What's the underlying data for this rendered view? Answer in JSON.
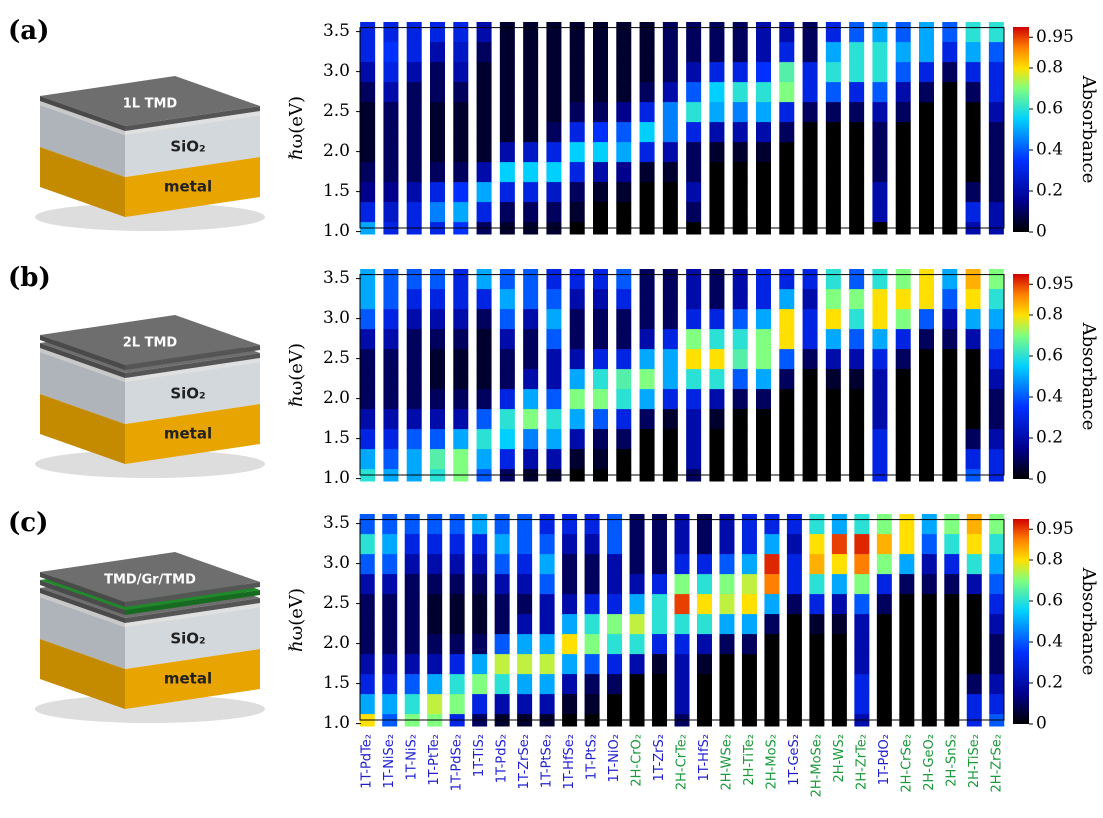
{
  "chart_data": [
    {
      "type": "heatmap",
      "label": "(a)",
      "illustration": [
        "1L TMD",
        "SiO₂",
        "metal"
      ],
      "ylabel": "ℏω(eV)",
      "colorbar_label": "Absorbance",
      "y": [
        1.0,
        1.25,
        1.5,
        1.75,
        2.0,
        2.25,
        2.5,
        2.75,
        3.0,
        3.25,
        3.5
      ],
      "ylim": [
        0.97,
        3.62
      ],
      "yticks": [
        {
          "value": 1,
          "label": "1.0"
        },
        1.5,
        {
          "value": 2,
          "label": "2.0"
        },
        2.5,
        {
          "value": 3,
          "label": "3.0"
        },
        3.5
      ],
      "clim": [
        0,
        1
      ],
      "cticks": [
        0,
        0.2,
        0.4,
        0.6,
        0.8,
        0.95
      ],
      "colormap": "jet",
      "values": [
        [
          0.5,
          0.3,
          0.15,
          0.1,
          0.05,
          0.05,
          0.05,
          0.1,
          0.2,
          0.3,
          0.3
        ],
        [
          0.3,
          0.25,
          0.15,
          0.1,
          0.1,
          0.1,
          0.1,
          0.2,
          0.3,
          0.35,
          0.3
        ],
        [
          0.3,
          0.3,
          0.2,
          0.1,
          0.1,
          0.1,
          0.1,
          0.1,
          0.2,
          0.3,
          0.3
        ],
        [
          0.3,
          0.45,
          0.3,
          0.1,
          0.05,
          0.05,
          0.05,
          0.1,
          0.1,
          0.2,
          0.3
        ],
        [
          0.35,
          0.5,
          0.35,
          0.1,
          0.05,
          0.05,
          0.05,
          0.1,
          0.2,
          0.25,
          0.3
        ],
        [
          0.1,
          0.3,
          0.5,
          0.2,
          0.05,
          0.05,
          0.05,
          0.05,
          0.05,
          0.1,
          0.2
        ],
        [
          0.05,
          0.1,
          0.3,
          0.55,
          0.2,
          0.05,
          0.05,
          0.05,
          0.05,
          0.05,
          0.05
        ],
        [
          0.05,
          0.1,
          0.3,
          0.55,
          0.25,
          0.05,
          0.05,
          0.05,
          0.05,
          0.05,
          0.05
        ],
        [
          0.05,
          0.1,
          0.25,
          0.55,
          0.3,
          0.1,
          0.05,
          0.05,
          0.05,
          0.05,
          0.05
        ],
        [
          0,
          0.05,
          0.1,
          0.3,
          0.55,
          0.3,
          0.1,
          0.05,
          0.05,
          0.05,
          0.05
        ],
        [
          0,
          0,
          0.05,
          0.2,
          0.55,
          0.35,
          0.1,
          0.05,
          0.05,
          0.05,
          0.05
        ],
        [
          0,
          0,
          0.05,
          0.15,
          0.5,
          0.4,
          0.15,
          0.05,
          0.05,
          0.05,
          0.05
        ],
        [
          0,
          0,
          0,
          0.05,
          0.3,
          0.55,
          0.3,
          0.1,
          0.05,
          0.05,
          0.05
        ],
        [
          0,
          0,
          0,
          0.05,
          0.2,
          0.45,
          0.45,
          0.2,
          0.1,
          0.1,
          0.1
        ],
        [
          0,
          0.1,
          0.2,
          0.1,
          0.1,
          0.3,
          0.6,
          0.4,
          0.2,
          0.1,
          0.1
        ],
        [
          0,
          0,
          0,
          0,
          0.05,
          0.2,
          0.5,
          0.55,
          0.3,
          0.1,
          0.1
        ],
        [
          0,
          0,
          0,
          0,
          0.05,
          0.2,
          0.45,
          0.6,
          0.3,
          0.1,
          0.1
        ],
        [
          0,
          0,
          0,
          0,
          0.05,
          0.2,
          0.5,
          0.6,
          0.35,
          0.2,
          0.2
        ],
        [
          0,
          0,
          0,
          0,
          0,
          0.1,
          0.3,
          0.7,
          0.65,
          0.3,
          0.2
        ],
        [
          0,
          0,
          0,
          0,
          0,
          0,
          0.1,
          0.3,
          0.3,
          0.1,
          0.1
        ],
        [
          0,
          0,
          0,
          0,
          0,
          0,
          0.1,
          0.4,
          0.6,
          0.5,
          0.3
        ],
        [
          0,
          0,
          0,
          0,
          0,
          0,
          0.1,
          0.3,
          0.6,
          0.6,
          0.4
        ],
        [
          0,
          0.2,
          0.2,
          0.1,
          0.1,
          0.1,
          0.2,
          0.4,
          0.6,
          0.6,
          0.5
        ],
        [
          0,
          0,
          0,
          0,
          0,
          0,
          0.1,
          0.2,
          0.4,
          0.5,
          0.4
        ],
        [
          0,
          0,
          0,
          0,
          0,
          0,
          0,
          0.1,
          0.3,
          0.5,
          0.5
        ],
        [
          0,
          0,
          0,
          0,
          0,
          0,
          0,
          0,
          0.1,
          0.3,
          0.4
        ],
        [
          0.2,
          0.3,
          0.1,
          0,
          0,
          0,
          0,
          0.1,
          0.3,
          0.5,
          0.6
        ],
        [
          0.2,
          0.2,
          0.1,
          0.1,
          0.1,
          0.1,
          0.2,
          0.3,
          0.3,
          0.4,
          0.6
        ]
      ]
    },
    {
      "type": "heatmap",
      "label": "(b)",
      "illustration": [
        "2L TMD",
        "SiO₂",
        "metal"
      ],
      "ylabel": "ℏω(eV)",
      "colorbar_label": "Absorbance",
      "y": [
        1.0,
        1.25,
        1.5,
        1.75,
        2.0,
        2.25,
        2.5,
        2.75,
        3.0,
        3.25,
        3.5
      ],
      "ylim": [
        0.97,
        3.62
      ],
      "yticks": [
        {
          "value": 1,
          "label": "1.0"
        },
        1.5,
        {
          "value": 2,
          "label": "2.0"
        },
        2.5,
        {
          "value": 3,
          "label": "3.0"
        },
        3.5
      ],
      "clim": [
        0,
        1
      ],
      "cticks": [
        0,
        0.2,
        0.4,
        0.6,
        0.8,
        0.95
      ],
      "colormap": "jet",
      "values": [
        [
          0.6,
          0.5,
          0.3,
          0.2,
          0.1,
          0.1,
          0.1,
          0.2,
          0.4,
          0.5,
          0.5
        ],
        [
          0.5,
          0.4,
          0.3,
          0.2,
          0.1,
          0.1,
          0.1,
          0.2,
          0.3,
          0.4,
          0.4
        ],
        [
          0.5,
          0.5,
          0.4,
          0.2,
          0.1,
          0.1,
          0.1,
          0.1,
          0.2,
          0.3,
          0.4
        ],
        [
          0.6,
          0.65,
          0.4,
          0.2,
          0.1,
          0.05,
          0.05,
          0.1,
          0.2,
          0.3,
          0.4
        ],
        [
          0.7,
          0.7,
          0.5,
          0.2,
          0.1,
          0.05,
          0.05,
          0.1,
          0.2,
          0.3,
          0.3
        ],
        [
          0.4,
          0.5,
          0.6,
          0.4,
          0.1,
          0.05,
          0.05,
          0.05,
          0.1,
          0.3,
          0.5
        ],
        [
          0.1,
          0.3,
          0.55,
          0.6,
          0.3,
          0.1,
          0.1,
          0.2,
          0.4,
          0.5,
          0.4
        ],
        [
          0.05,
          0.2,
          0.45,
          0.7,
          0.5,
          0.2,
          0.1,
          0.1,
          0.2,
          0.4,
          0.4
        ],
        [
          0.05,
          0.2,
          0.5,
          0.6,
          0.4,
          0.2,
          0.2,
          0.4,
          0.5,
          0.4,
          0.3
        ],
        [
          0,
          0.05,
          0.2,
          0.5,
          0.7,
          0.5,
          0.2,
          0.1,
          0.1,
          0.2,
          0.3
        ],
        [
          0,
          0.05,
          0.1,
          0.4,
          0.7,
          0.6,
          0.3,
          0.1,
          0.1,
          0.2,
          0.3
        ],
        [
          0,
          0,
          0.1,
          0.3,
          0.6,
          0.65,
          0.3,
          0.1,
          0.1,
          0.3,
          0.4
        ],
        [
          0,
          0,
          0,
          0.1,
          0.5,
          0.7,
          0.5,
          0.2,
          0.1,
          0.1,
          0.1
        ],
        [
          0,
          0,
          0,
          0.05,
          0.3,
          0.5,
          0.5,
          0.3,
          0.1,
          0.1,
          0.1
        ],
        [
          0.1,
          0.2,
          0.2,
          0.2,
          0.3,
          0.6,
          0.8,
          0.7,
          0.3,
          0.2,
          0.2
        ],
        [
          0,
          0,
          0,
          0.05,
          0.2,
          0.6,
          0.8,
          0.6,
          0.3,
          0.1,
          0.1
        ],
        [
          0,
          0,
          0,
          0,
          0.1,
          0.4,
          0.65,
          0.6,
          0.4,
          0.2,
          0.2
        ],
        [
          0,
          0,
          0,
          0,
          0.1,
          0.5,
          0.7,
          0.7,
          0.5,
          0.3,
          0.3
        ],
        [
          0,
          0,
          0,
          0,
          0,
          0.1,
          0.4,
          0.8,
          0.8,
          0.5,
          0.3
        ],
        [
          0,
          0,
          0,
          0,
          0,
          0,
          0.1,
          0.3,
          0.3,
          0.2,
          0.3
        ],
        [
          0,
          0,
          0,
          0,
          0,
          0.05,
          0.2,
          0.5,
          0.8,
          0.7,
          0.6
        ],
        [
          0,
          0,
          0,
          0,
          0,
          0.05,
          0.2,
          0.4,
          0.6,
          0.7,
          0.4
        ],
        [
          0.3,
          0.3,
          0.3,
          0.2,
          0.2,
          0.2,
          0.3,
          0.5,
          0.8,
          0.8,
          0.6
        ],
        [
          0,
          0,
          0,
          0,
          0,
          0,
          0.1,
          0.3,
          0.7,
          0.8,
          0.7
        ],
        [
          0,
          0,
          0,
          0,
          0,
          0,
          0,
          0.1,
          0.4,
          0.8,
          0.8
        ],
        [
          0,
          0,
          0,
          0,
          0,
          0,
          0,
          0.1,
          0.2,
          0.4,
          0.5
        ],
        [
          0.4,
          0.3,
          0.1,
          0,
          0,
          0,
          0,
          0.2,
          0.5,
          0.8,
          0.85
        ],
        [
          0.3,
          0.3,
          0.2,
          0.1,
          0.1,
          0.2,
          0.3,
          0.4,
          0.5,
          0.6,
          0.7
        ]
      ]
    },
    {
      "type": "heatmap",
      "label": "(c)",
      "illustration": [
        "TMD/Gr/TMD",
        "SiO₂",
        "metal"
      ],
      "ylabel": "ℏω(eV)",
      "colorbar_label": "Absorbance",
      "y": [
        1.0,
        1.25,
        1.5,
        1.75,
        2.0,
        2.25,
        2.5,
        2.75,
        3.0,
        3.25,
        3.5
      ],
      "ylim": [
        0.97,
        3.62
      ],
      "yticks": [
        {
          "value": 1,
          "label": "1.0"
        },
        1.5,
        {
          "value": 2,
          "label": "2.0"
        },
        2.5,
        {
          "value": 3,
          "label": "3.0"
        },
        3.5
      ],
      "clim": [
        0,
        1
      ],
      "cticks": [
        0,
        0.2,
        0.4,
        0.6,
        0.8,
        0.95
      ],
      "colormap": "jet",
      "categories": [
        "1T-PdTe₂",
        "1T-NiSe₂",
        "1T-NiS₂",
        "1T-PtTe₂",
        "1T-PdSe₂",
        "1T-TiS₂",
        "1T-PdS₂",
        "1T-ZrSe₂",
        "1T-PtSe₂",
        "1T-HfSe₂",
        "1T-PtS₂",
        "1T-NiO₂",
        "2H-CrO₂",
        "1T-ZrS₂",
        "2H-CrTe₂",
        "1T-HfS₂",
        "2H-WSe₂",
        "2H-TiTe₂",
        "2H-MoS₂",
        "1T-GeS₂",
        "2H-MoSe₂",
        "2H-WS₂",
        "2H-ZrTe₂",
        "1T-PdO₂",
        "2H-CrSe₂",
        "2H-GeO₂",
        "2H-SnS₂",
        "2H-TiSe₂",
        "2H-ZrSe₂"
      ],
      "category_colors": [
        "#1f1fd0",
        "#1f1fd0",
        "#1f1fd0",
        "#1f1fd0",
        "#1f1fd0",
        "#1f1fd0",
        "#1f1fd0",
        "#1f1fd0",
        "#1f1fd0",
        "#1f1fd0",
        "#1f1fd0",
        "#1f1fd0",
        "#1a9a3a",
        "#1f1fd0",
        "#1a9a3a",
        "#1f1fd0",
        "#1a9a3a",
        "#1a9a3a",
        "#1a9a3a",
        "#1f1fd0",
        "#1a9a3a",
        "#1a9a3a",
        "#1a9a3a",
        "#1f1fd0",
        "#1a9a3a",
        "#1a9a3a",
        "#1a9a3a",
        "#1a9a3a",
        "#1a9a3a"
      ],
      "values": [
        [
          0.8,
          0.5,
          0.3,
          0.2,
          0.1,
          0.1,
          0.1,
          0.2,
          0.4,
          0.6,
          0.4
        ],
        [
          0.4,
          0.5,
          0.3,
          0.2,
          0.1,
          0.1,
          0.1,
          0.2,
          0.4,
          0.5,
          0.4
        ],
        [
          0.7,
          0.6,
          0.4,
          0.2,
          0.1,
          0.1,
          0.1,
          0.1,
          0.2,
          0.3,
          0.4
        ],
        [
          0.7,
          0.75,
          0.5,
          0.2,
          0.1,
          0.05,
          0.05,
          0.1,
          0.2,
          0.3,
          0.4
        ],
        [
          0.3,
          0.7,
          0.6,
          0.3,
          0.1,
          0.05,
          0.05,
          0.1,
          0.2,
          0.3,
          0.4
        ],
        [
          0.1,
          0.3,
          0.7,
          0.5,
          0.1,
          0.05,
          0.05,
          0.1,
          0.2,
          0.3,
          0.5
        ],
        [
          0.05,
          0.2,
          0.6,
          0.75,
          0.4,
          0.1,
          0.1,
          0.2,
          0.4,
          0.5,
          0.4
        ],
        [
          0.05,
          0.2,
          0.5,
          0.75,
          0.5,
          0.2,
          0.1,
          0.2,
          0.3,
          0.4,
          0.4
        ],
        [
          0.05,
          0.2,
          0.5,
          0.75,
          0.5,
          0.2,
          0.2,
          0.4,
          0.5,
          0.4,
          0.3
        ],
        [
          0,
          0.05,
          0.2,
          0.5,
          0.8,
          0.5,
          0.2,
          0.1,
          0.1,
          0.2,
          0.3
        ],
        [
          0,
          0.05,
          0.1,
          0.4,
          0.7,
          0.6,
          0.3,
          0.1,
          0.1,
          0.2,
          0.3
        ],
        [
          0,
          0,
          0.1,
          0.3,
          0.6,
          0.7,
          0.3,
          0.2,
          0.2,
          0.4,
          0.4
        ],
        [
          0,
          0,
          0,
          0.2,
          0.6,
          0.75,
          0.5,
          0.2,
          0.1,
          0.1,
          0.1
        ],
        [
          0,
          0,
          0,
          0.05,
          0.3,
          0.6,
          0.6,
          0.3,
          0.1,
          0.1,
          0.1
        ],
        [
          0.1,
          0.2,
          0.2,
          0.2,
          0.3,
          0.6,
          0.95,
          0.7,
          0.3,
          0.2,
          0.2
        ],
        [
          0,
          0,
          0,
          0.05,
          0.2,
          0.6,
          0.8,
          0.6,
          0.3,
          0.1,
          0.1
        ],
        [
          0,
          0,
          0,
          0,
          0.1,
          0.5,
          0.75,
          0.7,
          0.4,
          0.2,
          0.2
        ],
        [
          0,
          0,
          0,
          0,
          0.1,
          0.5,
          0.8,
          0.75,
          0.5,
          0.3,
          0.3
        ],
        [
          0,
          0,
          0,
          0,
          0,
          0.1,
          0.5,
          0.9,
          0.97,
          0.5,
          0.3
        ],
        [
          0,
          0,
          0,
          0,
          0,
          0,
          0.1,
          0.3,
          0.3,
          0.2,
          0.3
        ],
        [
          0,
          0,
          0,
          0,
          0,
          0.05,
          0.3,
          0.6,
          0.85,
          0.8,
          0.6
        ],
        [
          0,
          0,
          0,
          0,
          0,
          0.05,
          0.2,
          0.5,
          0.8,
          0.95,
          0.5
        ],
        [
          0.2,
          0.3,
          0.3,
          0.2,
          0.2,
          0.2,
          0.4,
          0.7,
          0.9,
          0.97,
          0.6
        ],
        [
          0,
          0,
          0,
          0,
          0,
          0,
          0.1,
          0.3,
          0.7,
          0.85,
          0.7
        ],
        [
          0,
          0,
          0,
          0,
          0,
          0,
          0,
          0.1,
          0.5,
          0.8,
          0.8
        ],
        [
          0,
          0,
          0,
          0,
          0,
          0,
          0,
          0.1,
          0.2,
          0.4,
          0.5
        ],
        [
          0,
          0,
          0,
          0,
          0,
          0,
          0,
          0.1,
          0.3,
          0.6,
          0.7
        ],
        [
          0.3,
          0.3,
          0.1,
          0,
          0,
          0,
          0,
          0.2,
          0.6,
          0.8,
          0.85
        ],
        [
          0.4,
          0.3,
          0.2,
          0.1,
          0.1,
          0.2,
          0.3,
          0.4,
          0.5,
          0.6,
          0.7
        ]
      ]
    }
  ]
}
